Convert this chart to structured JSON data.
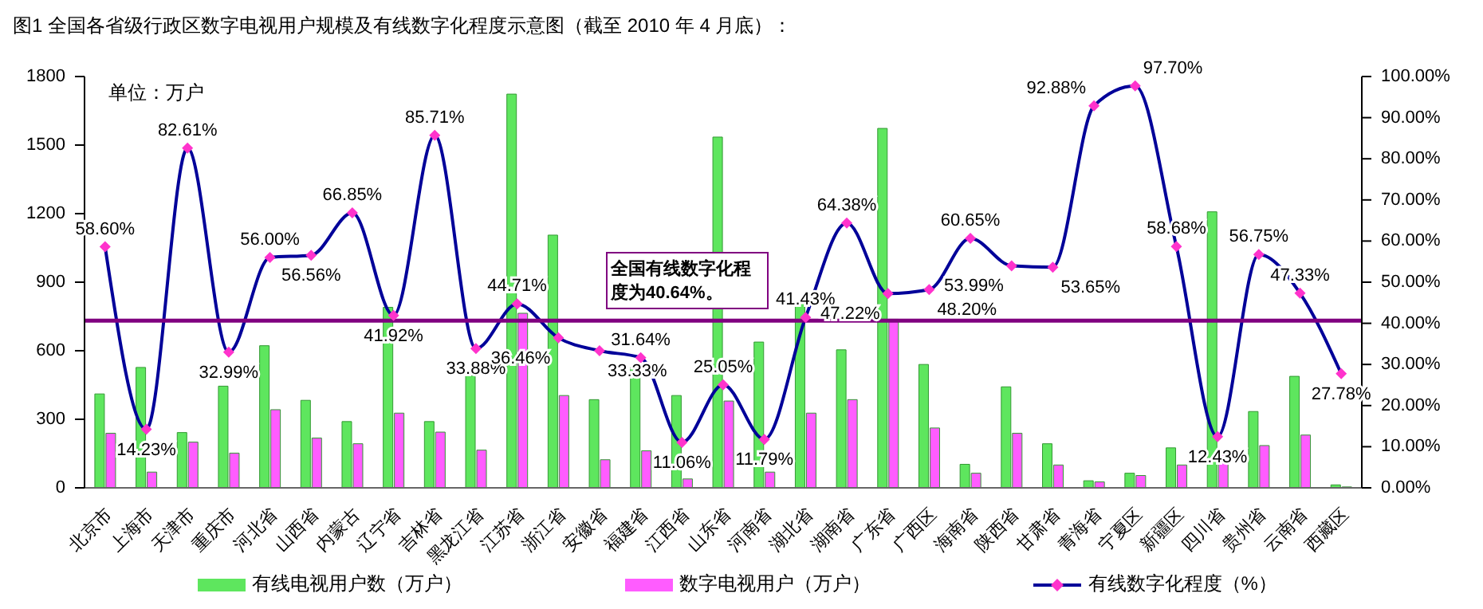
{
  "chart_data": {
    "type": "bar",
    "title": "图1 全国各省级行政区数字电视用户规模及有线数字化程度示意图（截至 2010 年 4 月底）：",
    "categories": [
      "北京市",
      "上海市",
      "天津市",
      "重庆市",
      "河北省",
      "山西省",
      "内蒙古",
      "辽宁省",
      "吉林省",
      "黑龙江省",
      "江苏省",
      "浙江省",
      "安徽省",
      "福建省",
      "江西省",
      "山东省",
      "河南省",
      "湖北省",
      "湖南省",
      "广东省",
      "广西区",
      "海南省",
      "陕西省",
      "甘肃省",
      "青海省",
      "宁夏区",
      "新疆区",
      "四川省",
      "贵州省",
      "云南省",
      "西藏区"
    ],
    "series": [
      {
        "name": "有线电视用户数（万户）",
        "color": "#5ee65e",
        "values": [
          411,
          527,
          242,
          445,
          622,
          383,
          290,
          790,
          290,
          490,
          1723,
          1106,
          386,
          527,
          404,
          1535,
          638,
          810,
          604,
          1573,
          540,
          103,
          442,
          193,
          31,
          64,
          175,
          1208,
          334,
          488,
          13
        ]
      },
      {
        "name": "数字电视用户（万户）",
        "color": "#ff5cff",
        "values": [
          239,
          69,
          200,
          152,
          342,
          218,
          193,
          327,
          244,
          165,
          764,
          404,
          123,
          162,
          39,
          380,
          69,
          327,
          386,
          738,
          262,
          64,
          239,
          100,
          26,
          54,
          100,
          149,
          185,
          231,
          4
        ]
      },
      {
        "name": "有线数字化程度（%）",
        "type": "line",
        "axis": "y2",
        "color": "#000099",
        "values": [
          58.6,
          14.23,
          82.61,
          32.99,
          56.0,
          56.56,
          66.85,
          41.92,
          85.71,
          33.88,
          44.71,
          36.46,
          33.33,
          31.64,
          11.06,
          25.05,
          11.79,
          41.43,
          64.38,
          47.22,
          48.2,
          60.65,
          53.99,
          53.65,
          92.88,
          97.7,
          58.68,
          12.43,
          56.75,
          47.33,
          27.78
        ],
        "value_labels": [
          "58.60%",
          "14.23%",
          "82.61%",
          "32.99%",
          "56.00%",
          "56.56%",
          "66.85%",
          "41.92%",
          "85.71%",
          "33.88%",
          "44.71%",
          "36.46%",
          "33.33%",
          "31.64%",
          "11.06%",
          "25.05%",
          "11.79%",
          "41.43%",
          "64.38%",
          "47.22%",
          "48.20%",
          "60.65%",
          "53.99%",
          "53.65%",
          "92.88%",
          "97.70%",
          "58.68%",
          "12.43%",
          "56.75%",
          "47.33%",
          "27.78%"
        ]
      }
    ],
    "ylim": [
      0,
      1800
    ],
    "yticks": [
      0,
      300,
      600,
      900,
      1200,
      1500,
      1800
    ],
    "y2lim": [
      0,
      100
    ],
    "y2ticks": [
      {
        "value": 0,
        "label": "0.00%"
      },
      {
        "value": 10,
        "label": "10.00%"
      },
      {
        "value": 20,
        "label": "20.00%"
      },
      {
        "value": 30,
        "label": "30.00%"
      },
      {
        "value": 40,
        "label": "40.00%"
      },
      {
        "value": 50,
        "label": "50.00%"
      },
      {
        "value": 60,
        "label": "60.00%"
      },
      {
        "value": 70,
        "label": "70.00%"
      },
      {
        "value": 80,
        "label": "80.00%"
      },
      {
        "value": 90,
        "label": "90.00%"
      },
      {
        "value": 100,
        "label": "100.00%"
      }
    ],
    "ref_lines": [
      {
        "axis": "y2",
        "value": 40.64,
        "label": "全国有线数字化程度为40.64%。",
        "color": "#800080"
      }
    ],
    "annotations": [
      "单位：万户"
    ],
    "grid": false,
    "legend": "bottom",
    "marker": "diamond",
    "line_style": "solid"
  }
}
